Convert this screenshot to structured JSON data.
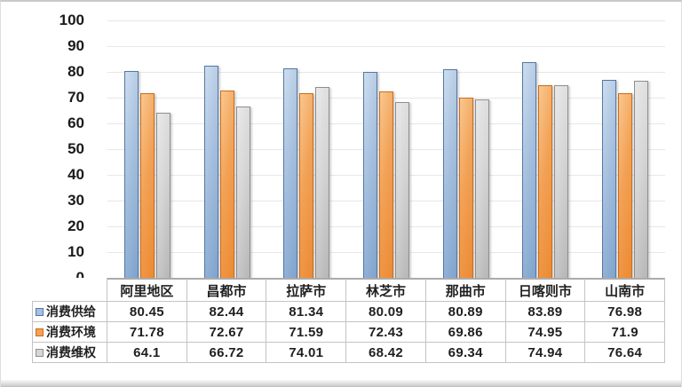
{
  "chart_data": {
    "type": "bar",
    "title": "",
    "xlabel": "",
    "ylabel": "",
    "categories": [
      "阿里地区",
      "昌都市",
      "拉萨市",
      "林芝市",
      "那曲市",
      "日喀则市",
      "山南市"
    ],
    "series": [
      {
        "name": "消费供给",
        "key": "consumption-supply",
        "values": [
          80.45,
          82.44,
          81.34,
          80.09,
          80.89,
          83.89,
          76.98
        ]
      },
      {
        "name": "消费环境",
        "key": "consumption-environment",
        "values": [
          71.78,
          72.67,
          71.59,
          72.43,
          69.86,
          74.95,
          71.9
        ]
      },
      {
        "name": "消费维权",
        "key": "consumption-rights",
        "values": [
          64.1,
          66.72,
          74.01,
          68.42,
          69.34,
          74.94,
          76.64
        ]
      }
    ],
    "ylim": [
      0,
      100
    ],
    "yticks": [
      0,
      10,
      20,
      30,
      40,
      50,
      60,
      70,
      80,
      90,
      100
    ],
    "grid": true,
    "legend_position": "table-left",
    "value_table_shown": true
  },
  "styles": {
    "series_colors": [
      {
        "fill_light": "#cdddee",
        "fill_mid": "#a6c0de",
        "fill_dark": "#7fa3cd",
        "border": "#5577a3"
      },
      {
        "fill_light": "#f9c78f",
        "fill_mid": "#f2a155",
        "fill_dark": "#ec8a33",
        "border": "#c96d1c"
      },
      {
        "fill_light": "#e9e9e9",
        "fill_mid": "#d6d6d6",
        "fill_dark": "#b6b6b6",
        "border": "#8e8e8e"
      }
    ],
    "gridline_color": "#e7e7e7",
    "axis_line_color": "#ababab",
    "table_border_color": "#c3c3c3",
    "text_color": "#1f1f1f"
  }
}
